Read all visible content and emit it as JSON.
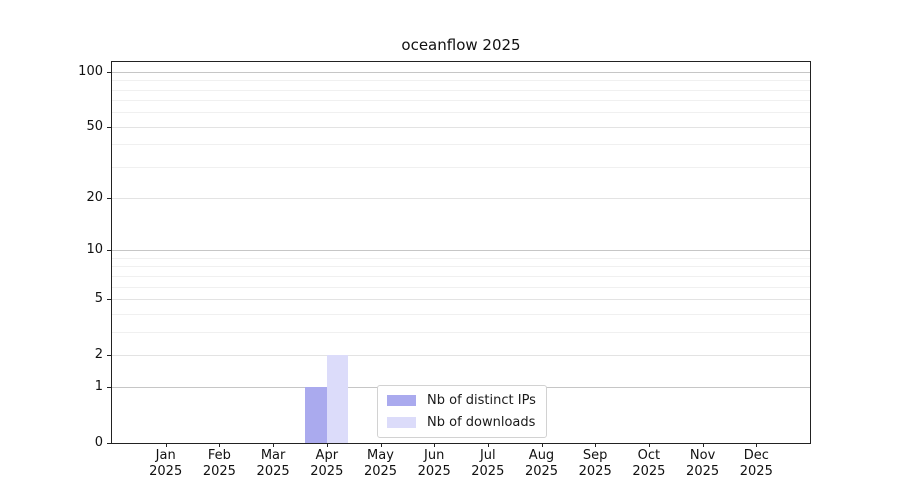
{
  "chart_data": {
    "type": "bar",
    "title": "oceanflow 2025",
    "categories": [
      {
        "month": "Jan",
        "year": "2025"
      },
      {
        "month": "Feb",
        "year": "2025"
      },
      {
        "month": "Mar",
        "year": "2025"
      },
      {
        "month": "Apr",
        "year": "2025"
      },
      {
        "month": "May",
        "year": "2025"
      },
      {
        "month": "Jun",
        "year": "2025"
      },
      {
        "month": "Jul",
        "year": "2025"
      },
      {
        "month": "Aug",
        "year": "2025"
      },
      {
        "month": "Sep",
        "year": "2025"
      },
      {
        "month": "Oct",
        "year": "2025"
      },
      {
        "month": "Nov",
        "year": "2025"
      },
      {
        "month": "Dec",
        "year": "2025"
      }
    ],
    "series": [
      {
        "name": "Nb of distinct IPs",
        "color": "#aaaaee",
        "values": [
          0,
          0,
          0,
          1,
          0,
          0,
          0,
          0,
          0,
          0,
          0,
          0
        ]
      },
      {
        "name": "Nb of downloads",
        "color": "#dcdcfa",
        "values": [
          0,
          0,
          0,
          2,
          0,
          0,
          0,
          0,
          0,
          0,
          0,
          0
        ]
      }
    ],
    "y_ticks": [
      0,
      1,
      2,
      5,
      10,
      20,
      50,
      100
    ],
    "yscale": "log1p",
    "ylim": [
      0,
      113
    ],
    "xlabel": "",
    "ylabel": "",
    "grid": "horizontal",
    "legend_position": "lower center"
  }
}
